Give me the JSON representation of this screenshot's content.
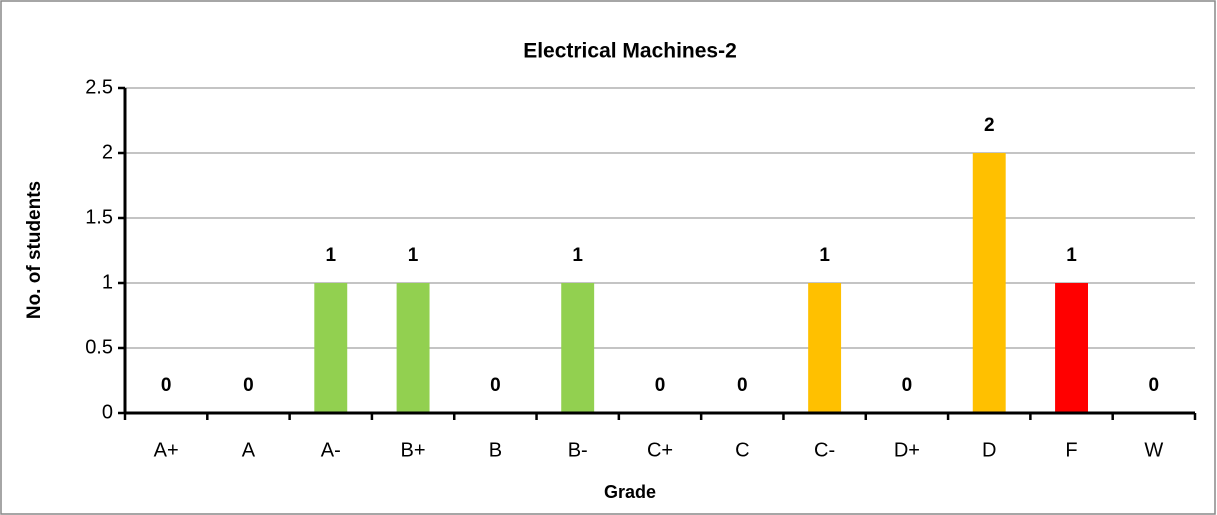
{
  "chart_data": {
    "type": "bar",
    "title": "Electrical Machines-2",
    "x_label": "Grade",
    "y_label": "No. of students",
    "categories": [
      "A+",
      "A",
      "A-",
      "B+",
      "B",
      "B-",
      "C+",
      "C",
      "C-",
      "D+",
      "D",
      "F",
      "W"
    ],
    "values": [
      0,
      0,
      1,
      1,
      0,
      1,
      0,
      0,
      1,
      0,
      2,
      1,
      0
    ],
    "colors": [
      "#92d050",
      "#92d050",
      "#92d050",
      "#92d050",
      "#92d050",
      "#92d050",
      "#ffc000",
      "#ffc000",
      "#ffc000",
      "#ffc000",
      "#ffc000",
      "#ff0000",
      "#ff0000"
    ],
    "ylim": [
      0,
      2.5
    ],
    "yticks": [
      0,
      0.5,
      1,
      1.5,
      2,
      2.5
    ],
    "grid": true
  }
}
